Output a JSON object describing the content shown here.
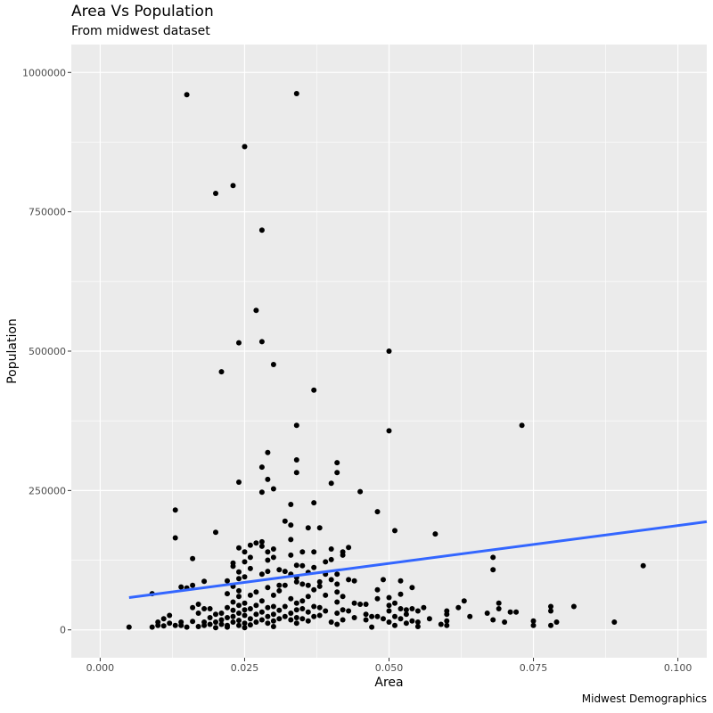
{
  "chart_data": {
    "type": "scatter",
    "title": "Area Vs Population",
    "subtitle": "From midwest dataset",
    "caption": "Midwest Demographics",
    "xlabel": "Area",
    "ylabel": "Population",
    "xlim": [
      -0.005,
      0.105
    ],
    "ylim": [
      -50000,
      1050000
    ],
    "x_ticks": [
      0.0,
      0.025,
      0.05,
      0.075,
      0.1
    ],
    "x_tick_labels": [
      "0.000",
      "0.025",
      "0.050",
      "0.075",
      "0.100"
    ],
    "y_ticks": [
      0,
      250000,
      500000,
      750000,
      1000000
    ],
    "y_tick_labels": [
      "0",
      "250000",
      "500000",
      "750000",
      "1000000"
    ],
    "grid": true,
    "background": "#ebebeb",
    "point_color": "#000000",
    "trend_color": "#3366ff",
    "trend_line": {
      "x": [
        0.005,
        0.105
      ],
      "y": [
        58000,
        194000
      ]
    },
    "points": [
      [
        0.005,
        5000
      ],
      [
        0.009,
        65000
      ],
      [
        0.009,
        5000
      ],
      [
        0.01,
        8000
      ],
      [
        0.01,
        14000
      ],
      [
        0.011,
        7000
      ],
      [
        0.011,
        20000
      ],
      [
        0.012,
        12000
      ],
      [
        0.012,
        26000
      ],
      [
        0.013,
        215000
      ],
      [
        0.013,
        165000
      ],
      [
        0.013,
        8000
      ],
      [
        0.014,
        77000
      ],
      [
        0.014,
        8000
      ],
      [
        0.014,
        14000
      ],
      [
        0.015,
        75000
      ],
      [
        0.015,
        960000
      ],
      [
        0.015,
        5000
      ],
      [
        0.016,
        128000
      ],
      [
        0.016,
        80000
      ],
      [
        0.016,
        40000
      ],
      [
        0.016,
        15000
      ],
      [
        0.017,
        30000
      ],
      [
        0.017,
        46000
      ],
      [
        0.017,
        6000
      ],
      [
        0.018,
        87000
      ],
      [
        0.018,
        8000
      ],
      [
        0.018,
        38000
      ],
      [
        0.018,
        14000
      ],
      [
        0.019,
        10000
      ],
      [
        0.019,
        22000
      ],
      [
        0.019,
        38000
      ],
      [
        0.02,
        175000
      ],
      [
        0.02,
        783000
      ],
      [
        0.02,
        28000
      ],
      [
        0.02,
        14000
      ],
      [
        0.02,
        4000
      ],
      [
        0.021,
        463000
      ],
      [
        0.021,
        10000
      ],
      [
        0.021,
        18000
      ],
      [
        0.021,
        30000
      ],
      [
        0.022,
        8000
      ],
      [
        0.022,
        22000
      ],
      [
        0.022,
        88000
      ],
      [
        0.022,
        65000
      ],
      [
        0.022,
        40000
      ],
      [
        0.022,
        5000
      ],
      [
        0.023,
        797000
      ],
      [
        0.023,
        120000
      ],
      [
        0.023,
        114000
      ],
      [
        0.023,
        78000
      ],
      [
        0.023,
        50000
      ],
      [
        0.023,
        35000
      ],
      [
        0.023,
        24000
      ],
      [
        0.023,
        14000
      ],
      [
        0.024,
        515000
      ],
      [
        0.024,
        265000
      ],
      [
        0.024,
        147000
      ],
      [
        0.024,
        104000
      ],
      [
        0.024,
        92000
      ],
      [
        0.024,
        70000
      ],
      [
        0.024,
        60000
      ],
      [
        0.024,
        44000
      ],
      [
        0.024,
        30000
      ],
      [
        0.024,
        17000
      ],
      [
        0.024,
        8000
      ],
      [
        0.025,
        867000
      ],
      [
        0.025,
        140000
      ],
      [
        0.025,
        122000
      ],
      [
        0.025,
        95000
      ],
      [
        0.025,
        48000
      ],
      [
        0.025,
        36000
      ],
      [
        0.025,
        26000
      ],
      [
        0.025,
        12000
      ],
      [
        0.025,
        4000
      ],
      [
        0.026,
        152000
      ],
      [
        0.026,
        130000
      ],
      [
        0.026,
        110000
      ],
      [
        0.026,
        62000
      ],
      [
        0.026,
        38000
      ],
      [
        0.026,
        20000
      ],
      [
        0.026,
        9000
      ],
      [
        0.027,
        573000
      ],
      [
        0.027,
        156000
      ],
      [
        0.027,
        68000
      ],
      [
        0.027,
        44000
      ],
      [
        0.027,
        28000
      ],
      [
        0.027,
        14000
      ],
      [
        0.028,
        717000
      ],
      [
        0.028,
        517000
      ],
      [
        0.028,
        292000
      ],
      [
        0.028,
        247000
      ],
      [
        0.028,
        158000
      ],
      [
        0.028,
        150000
      ],
      [
        0.028,
        100000
      ],
      [
        0.028,
        52000
      ],
      [
        0.028,
        32000
      ],
      [
        0.028,
        18000
      ],
      [
        0.029,
        318000
      ],
      [
        0.029,
        270000
      ],
      [
        0.029,
        140000
      ],
      [
        0.029,
        125000
      ],
      [
        0.029,
        105000
      ],
      [
        0.029,
        76000
      ],
      [
        0.029,
        40000
      ],
      [
        0.029,
        24000
      ],
      [
        0.029,
        12000
      ],
      [
        0.03,
        476000
      ],
      [
        0.03,
        253000
      ],
      [
        0.03,
        145000
      ],
      [
        0.03,
        130000
      ],
      [
        0.03,
        62000
      ],
      [
        0.03,
        42000
      ],
      [
        0.03,
        28000
      ],
      [
        0.03,
        16000
      ],
      [
        0.03,
        6000
      ],
      [
        0.031,
        108000
      ],
      [
        0.031,
        80000
      ],
      [
        0.031,
        70000
      ],
      [
        0.031,
        35000
      ],
      [
        0.031,
        20000
      ],
      [
        0.032,
        195000
      ],
      [
        0.032,
        105000
      ],
      [
        0.032,
        80000
      ],
      [
        0.032,
        42000
      ],
      [
        0.032,
        24000
      ],
      [
        0.033,
        225000
      ],
      [
        0.033,
        188000
      ],
      [
        0.033,
        162000
      ],
      [
        0.033,
        134000
      ],
      [
        0.033,
        100000
      ],
      [
        0.033,
        56000
      ],
      [
        0.033,
        30000
      ],
      [
        0.033,
        18000
      ],
      [
        0.034,
        962000
      ],
      [
        0.034,
        367000
      ],
      [
        0.034,
        305000
      ],
      [
        0.034,
        282000
      ],
      [
        0.034,
        116000
      ],
      [
        0.034,
        94000
      ],
      [
        0.034,
        86000
      ],
      [
        0.034,
        48000
      ],
      [
        0.034,
        36000
      ],
      [
        0.034,
        22000
      ],
      [
        0.034,
        12000
      ],
      [
        0.035,
        140000
      ],
      [
        0.035,
        115000
      ],
      [
        0.035,
        82000
      ],
      [
        0.035,
        52000
      ],
      [
        0.035,
        38000
      ],
      [
        0.035,
        20000
      ],
      [
        0.036,
        183000
      ],
      [
        0.036,
        103000
      ],
      [
        0.036,
        80000
      ],
      [
        0.036,
        60000
      ],
      [
        0.036,
        32000
      ],
      [
        0.036,
        16000
      ],
      [
        0.037,
        430000
      ],
      [
        0.037,
        228000
      ],
      [
        0.037,
        140000
      ],
      [
        0.037,
        112000
      ],
      [
        0.037,
        72000
      ],
      [
        0.037,
        42000
      ],
      [
        0.037,
        24000
      ],
      [
        0.038,
        183000
      ],
      [
        0.038,
        86000
      ],
      [
        0.038,
        78000
      ],
      [
        0.038,
        40000
      ],
      [
        0.038,
        26000
      ],
      [
        0.039,
        122000
      ],
      [
        0.039,
        100000
      ],
      [
        0.039,
        62000
      ],
      [
        0.039,
        34000
      ],
      [
        0.04,
        263000
      ],
      [
        0.04,
        145000
      ],
      [
        0.04,
        126000
      ],
      [
        0.04,
        90000
      ],
      [
        0.04,
        14000
      ],
      [
        0.041,
        300000
      ],
      [
        0.041,
        282000
      ],
      [
        0.041,
        100000
      ],
      [
        0.041,
        82000
      ],
      [
        0.041,
        68000
      ],
      [
        0.041,
        50000
      ],
      [
        0.041,
        30000
      ],
      [
        0.041,
        10000
      ],
      [
        0.042,
        140000
      ],
      [
        0.042,
        134000
      ],
      [
        0.042,
        60000
      ],
      [
        0.042,
        36000
      ],
      [
        0.042,
        18000
      ],
      [
        0.043,
        148000
      ],
      [
        0.043,
        90000
      ],
      [
        0.043,
        34000
      ],
      [
        0.044,
        88000
      ],
      [
        0.044,
        48000
      ],
      [
        0.044,
        22000
      ],
      [
        0.045,
        248000
      ],
      [
        0.045,
        46000
      ],
      [
        0.046,
        46000
      ],
      [
        0.046,
        28000
      ],
      [
        0.046,
        18000
      ],
      [
        0.047,
        24000
      ],
      [
        0.047,
        5000
      ],
      [
        0.048,
        212000
      ],
      [
        0.048,
        72000
      ],
      [
        0.048,
        56000
      ],
      [
        0.048,
        24000
      ],
      [
        0.049,
        90000
      ],
      [
        0.049,
        20000
      ],
      [
        0.05,
        500000
      ],
      [
        0.05,
        357000
      ],
      [
        0.05,
        58000
      ],
      [
        0.05,
        44000
      ],
      [
        0.05,
        34000
      ],
      [
        0.05,
        14000
      ],
      [
        0.051,
        178000
      ],
      [
        0.051,
        48000
      ],
      [
        0.051,
        24000
      ],
      [
        0.051,
        8000
      ],
      [
        0.052,
        88000
      ],
      [
        0.052,
        64000
      ],
      [
        0.052,
        38000
      ],
      [
        0.052,
        20000
      ],
      [
        0.053,
        36000
      ],
      [
        0.053,
        28000
      ],
      [
        0.053,
        12000
      ],
      [
        0.054,
        76000
      ],
      [
        0.054,
        38000
      ],
      [
        0.054,
        16000
      ],
      [
        0.055,
        34000
      ],
      [
        0.055,
        14000
      ],
      [
        0.055,
        6000
      ],
      [
        0.056,
        40000
      ],
      [
        0.057,
        20000
      ],
      [
        0.058,
        172000
      ],
      [
        0.059,
        10000
      ],
      [
        0.06,
        34000
      ],
      [
        0.06,
        28000
      ],
      [
        0.06,
        16000
      ],
      [
        0.06,
        8000
      ],
      [
        0.062,
        40000
      ],
      [
        0.063,
        52000
      ],
      [
        0.064,
        24000
      ],
      [
        0.067,
        30000
      ],
      [
        0.068,
        130000
      ],
      [
        0.068,
        108000
      ],
      [
        0.068,
        18000
      ],
      [
        0.069,
        48000
      ],
      [
        0.069,
        38000
      ],
      [
        0.07,
        14000
      ],
      [
        0.071,
        32000
      ],
      [
        0.072,
        32000
      ],
      [
        0.073,
        367000
      ],
      [
        0.075,
        16000
      ],
      [
        0.075,
        8000
      ],
      [
        0.078,
        42000
      ],
      [
        0.078,
        34000
      ],
      [
        0.078,
        8000
      ],
      [
        0.079,
        14000
      ],
      [
        0.082,
        42000
      ],
      [
        0.089,
        14000
      ],
      [
        0.094,
        115000
      ]
    ]
  }
}
